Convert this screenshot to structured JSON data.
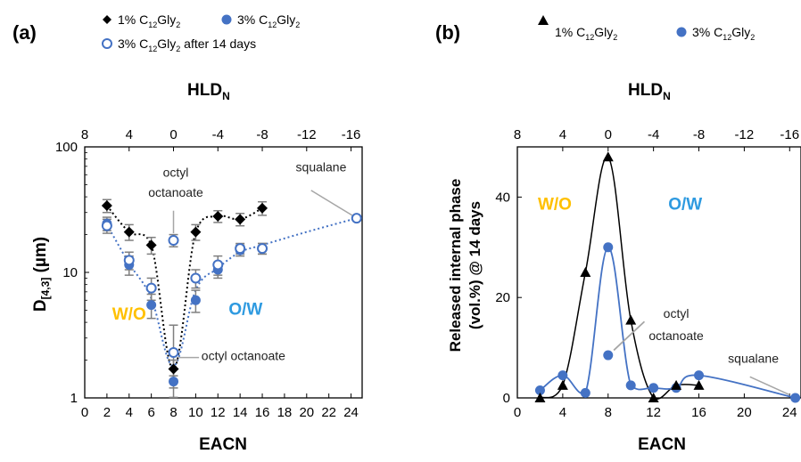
{
  "colors": {
    "black": "#000000",
    "blue": "#4472c4",
    "wo": "#ffc000",
    "ow": "#2e9ae0",
    "grey": "#8c8c8c"
  },
  "panels": {
    "a": {
      "label": "(a)"
    },
    "b": {
      "label": "(b)"
    }
  },
  "legend_a": {
    "s1": {
      "prefix": "1% C",
      "sub1": "12",
      "mid": "Gly",
      "sub2": "2",
      "suffix": ""
    },
    "s2": {
      "prefix": "3% C",
      "sub1": "12",
      "mid": "Gly",
      "sub2": "2",
      "suffix": ""
    },
    "s3": {
      "prefix": "3% C",
      "sub1": "12",
      "mid": "Gly",
      "sub2": "2",
      "suffix": " after 14 days"
    }
  },
  "legend_b": {
    "s1": {
      "prefix": "1% C",
      "sub1": "12",
      "mid": "Gly",
      "sub2": "2"
    },
    "s2": {
      "prefix": "3% C",
      "sub1": "12",
      "mid": "Gly",
      "sub2": "2"
    }
  },
  "chart_data": [
    {
      "type": "scatter",
      "panel": "a",
      "xlabel": "EACN",
      "ylabel": "D [4,3] (µm)",
      "ylabel_main": "D",
      "ylabel_sub": "[4,3]",
      "ylabel_unit": " (µm)",
      "top_axis": {
        "label": "HLD",
        "label_sub": "N",
        "ticks": [
          8,
          4,
          0,
          -4,
          -8,
          -12,
          -16
        ],
        "tick_labels": [
          "8",
          "4",
          "0",
          "-4",
          "-8",
          "-12",
          "-16"
        ],
        "relation": "HLD = 8 - EACN"
      },
      "xlim": [
        0,
        25
      ],
      "xticks": [
        0,
        2,
        4,
        6,
        8,
        10,
        12,
        14,
        16,
        18,
        20,
        22,
        24
      ],
      "xtick_labels": [
        "0",
        "2",
        "4",
        "6",
        "8",
        "10",
        "12",
        "14",
        "16",
        "18",
        "20",
        "22",
        "24"
      ],
      "ylim": [
        1,
        100
      ],
      "yscale": "log",
      "yticks": [
        1,
        10,
        100
      ],
      "ytick_labels": [
        "1",
        "10",
        "100"
      ],
      "series": [
        {
          "name": "1% C12Gly2",
          "marker": "diamond",
          "color": "#000000",
          "x": [
            2,
            4,
            6,
            8,
            10,
            12,
            14,
            16
          ],
          "y": [
            34,
            21,
            16.5,
            1.7,
            21,
            28,
            26.5,
            32.5
          ],
          "err": [
            4,
            3,
            2.5,
            0.3,
            3,
            3,
            3,
            4
          ]
        },
        {
          "name": "3% C12Gly2",
          "marker": "circle",
          "color": "#4472c4",
          "x": [
            2,
            4,
            6,
            8,
            10,
            12,
            14,
            16
          ],
          "y": [
            24.5,
            11.5,
            5.5,
            1.35,
            6,
            10.5,
            15,
            15.5
          ],
          "err": [
            3,
            2,
            1.2,
            0.15,
            1.2,
            1.5,
            1.5,
            1.5
          ]
        },
        {
          "name": "3% C12Gly2 after 14 days",
          "marker": "open-circle",
          "color": "#4472c4",
          "x": [
            2,
            4,
            6,
            8,
            8,
            10,
            12,
            14,
            16,
            24.5
          ],
          "y": [
            23.5,
            12.5,
            7.5,
            18,
            2.3,
            9,
            11.5,
            15.5,
            15.5,
            27
          ],
          "err": [
            3,
            2,
            1.5,
            2,
            1.5,
            1.5,
            2,
            1.5,
            1.5,
            0
          ]
        }
      ],
      "annotations": [
        {
          "text": "octyl",
          "x": 8.2,
          "y": 58
        },
        {
          "text": "octanoate",
          "x": 8.2,
          "y": 40
        },
        {
          "text": "squalane",
          "x": 21.3,
          "y": 64
        },
        {
          "text": "octyl octanoate",
          "x": 14.3,
          "y": 2.0
        },
        {
          "text": "W/O",
          "x": 4.0,
          "y": 4.2,
          "color": "#ffc000"
        },
        {
          "text": "O/W",
          "x": 14.5,
          "y": 4.6,
          "color": "#2e9ae0"
        }
      ]
    },
    {
      "type": "line",
      "panel": "b",
      "xlabel": "EACN",
      "ylabel": "Released internal phase (vol.%) @ 14 days",
      "ylabel_line1": "Released internal phase",
      "ylabel_line2": "(vol.%) @ 14 days",
      "top_axis": {
        "label": "HLD",
        "label_sub": "N",
        "ticks": [
          8,
          4,
          0,
          -4,
          -8,
          -12,
          -16
        ],
        "tick_labels": [
          "8",
          "4",
          "0",
          "-4",
          "-8",
          "-12",
          "-16"
        ],
        "relation": "HLD = 8 - EACN"
      },
      "xlim": [
        0,
        25
      ],
      "xticks": [
        0,
        4,
        8,
        12,
        16,
        20,
        24
      ],
      "xtick_labels": [
        "0",
        "4",
        "8",
        "12",
        "16",
        "20",
        "24"
      ],
      "ylim": [
        0,
        50
      ],
      "yticks": [
        0,
        20,
        40
      ],
      "ytick_labels": [
        "0",
        "20",
        "40"
      ],
      "series": [
        {
          "name": "1% C12Gly2",
          "marker": "triangle",
          "color": "#000000",
          "x": [
            2,
            4,
            6,
            8,
            10,
            12,
            14,
            16
          ],
          "y": [
            0,
            2.5,
            25,
            48,
            15.5,
            0,
            2.5,
            2.5
          ]
        },
        {
          "name": "3% C12Gly2",
          "marker": "circle",
          "color": "#4472c4",
          "x": [
            2,
            4,
            6,
            8,
            10,
            12,
            14,
            16,
            24.5
          ],
          "y": [
            1.5,
            4.5,
            1,
            30,
            2.5,
            2,
            2,
            4.5,
            0
          ]
        }
      ],
      "extra_points": [
        {
          "x": 8,
          "y": 8.5,
          "marker": "circle",
          "color": "#4472c4"
        }
      ],
      "annotations": [
        {
          "text": "W/O",
          "x": 3.3,
          "y": 37.5,
          "color": "#ffc000"
        },
        {
          "text": "O/W",
          "x": 14.8,
          "y": 37.5,
          "color": "#2e9ae0"
        },
        {
          "text": "octyl",
          "x": 14.0,
          "y": 16.0
        },
        {
          "text": "octanoate",
          "x": 14.0,
          "y": 11.5
        },
        {
          "text": "squalane",
          "x": 20.8,
          "y": 7.0
        }
      ]
    }
  ]
}
